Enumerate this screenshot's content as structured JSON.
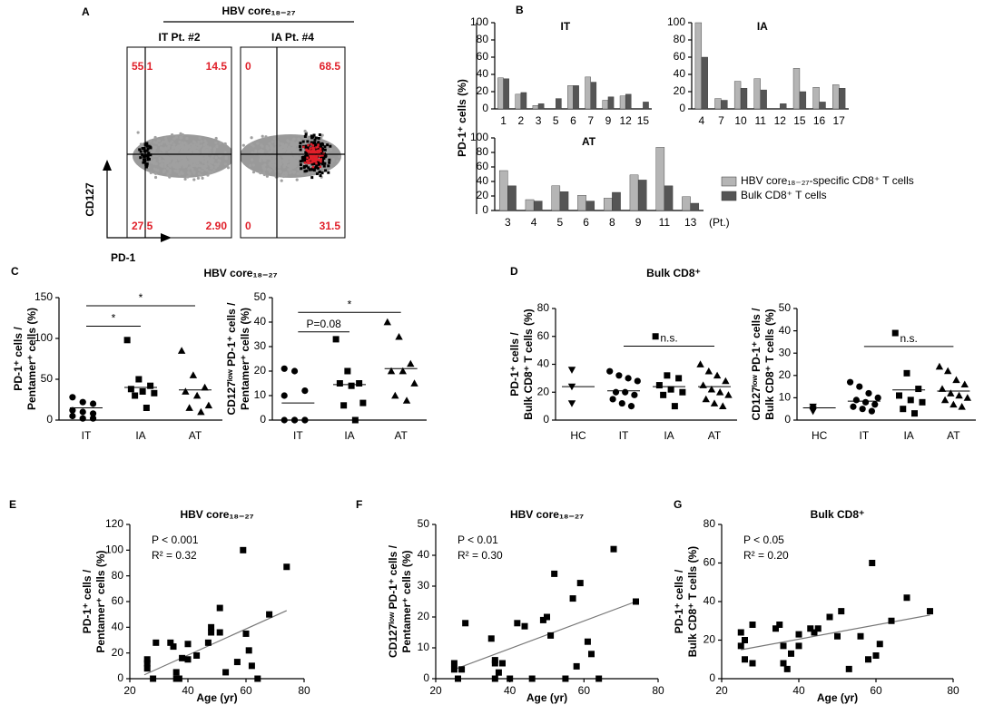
{
  "chart_data": [
    {
      "type": "flow",
      "panel": "A",
      "title": "HBV core₁₈₋₂₇",
      "xlabel": "PD-1",
      "ylabel": "CD127",
      "plots": [
        {
          "title": "IT Pt. #2",
          "values": [
            55.1,
            14.5,
            27.5,
            2.9
          ],
          "value_labels": [
            "55.1",
            "14.5",
            "27.5",
            "2.90"
          ]
        },
        {
          "title": "IA Pt. #4",
          "values": [
            0,
            68.5,
            0,
            31.5
          ]
        }
      ]
    },
    {
      "type": "bar",
      "panel": "B",
      "ylabel": "PD-1⁺ cells (%)",
      "ylim": [
        0,
        100
      ],
      "yticks": [
        0,
        20,
        40,
        60,
        80,
        100
      ],
      "x_unit": "(Pt.)",
      "series": [
        {
          "name": "HBV core₁₈₋₂₇-specific CD8⁺ T cells",
          "color": "#b5b5b5"
        },
        {
          "name": "Bulk CD8⁺ T cells",
          "color": "#555555"
        }
      ],
      "groups": [
        {
          "title": "IT",
          "categories": [
            "1",
            "2",
            "3",
            "5",
            "6",
            "7",
            "9",
            "12",
            "15"
          ],
          "series_values": [
            [
              36,
              17,
              4,
              0,
              27,
              37,
              10,
              15,
              0
            ],
            [
              35,
              19,
              6,
              12,
              27,
              31,
              14,
              17,
              8
            ]
          ]
        },
        {
          "title": "IA",
          "categories": [
            "4",
            "7",
            "10",
            "11",
            "12",
            "15",
            "16",
            "17"
          ],
          "series_values": [
            [
              100,
              12,
              32,
              35,
              0,
              47,
              25,
              28
            ],
            [
              60,
              10,
              24,
              22,
              6,
              20,
              8,
              24
            ]
          ]
        },
        {
          "title": "AT",
          "categories": [
            "3",
            "4",
            "5",
            "6",
            "8",
            "9",
            "11",
            "13"
          ],
          "series_values": [
            [
              55,
              15,
              34,
              21,
              17,
              49,
              87,
              19
            ],
            [
              34,
              13,
              26,
              13,
              25,
              42,
              34,
              10
            ]
          ]
        }
      ]
    },
    {
      "type": "dot",
      "panel": "C",
      "title": "HBV core₁₈₋₂₇",
      "markers": [
        "circle",
        "square",
        "triangle"
      ],
      "plots": [
        {
          "ylabel": [
            "PD-1⁺ cells /",
            "Pentamer⁺ cells (%)"
          ],
          "ylim": [
            0,
            150
          ],
          "yticks": [
            0,
            50,
            100,
            150
          ],
          "categories": [
            "IT",
            "IA",
            "AT"
          ],
          "annotations": [
            "*",
            "*"
          ],
          "groups": [
            {
              "values": [
                28,
                22,
                20,
                12,
                10,
                8,
                5,
                2,
                2
              ],
              "mean": 15
            },
            {
              "values": [
                98,
                50,
                42,
                38,
                35,
                33,
                30,
                15
              ],
              "mean": 40
            },
            {
              "values": [
                85,
                55,
                40,
                35,
                30,
                18,
                15,
                10
              ],
              "mean": 37
            }
          ]
        },
        {
          "ylabel": [
            "CD127ˡᵒʷ PD-1⁺ cells /",
            "Pentamer⁺ cells (%)"
          ],
          "ylim": [
            0,
            50
          ],
          "yticks": [
            0,
            10,
            20,
            30,
            40,
            50
          ],
          "categories": [
            "IT",
            "IA",
            "AT"
          ],
          "annotations": [
            "P=0.08",
            "*"
          ],
          "groups": [
            {
              "values": [
                21,
                20,
                12,
                10,
                0,
                0,
                0,
                0,
                0
              ],
              "mean": 7
            },
            {
              "values": [
                33,
                20,
                15,
                15,
                14,
                7,
                6,
                0
              ],
              "mean": 14.5
            },
            {
              "values": [
                40,
                34,
                23,
                20,
                20,
                15,
                10,
                8
              ],
              "mean": 21
            }
          ]
        }
      ]
    },
    {
      "type": "dot",
      "panel": "D",
      "title": "Bulk CD8⁺",
      "markers": [
        "triangle-down",
        "circle",
        "square",
        "triangle"
      ],
      "plots": [
        {
          "ylabel": [
            "PD-1⁺ cells /",
            "Bulk CD8⁺ T cells (%)"
          ],
          "ylim": [
            0,
            80
          ],
          "yticks": [
            0,
            20,
            40,
            60,
            80
          ],
          "categories": [
            "HC",
            "IT",
            "IA",
            "AT"
          ],
          "annotations": [
            "n.s."
          ],
          "groups": [
            {
              "values": [
                36,
                24,
                12
              ],
              "mean": 24
            },
            {
              "values": [
                35,
                32,
                30,
                28,
                20,
                20,
                18,
                15,
                12,
                10
              ],
              "mean": 21
            },
            {
              "values": [
                60,
                32,
                30,
                25,
                22,
                20,
                18,
                10
              ],
              "mean": 24
            },
            {
              "values": [
                40,
                35,
                32,
                28,
                25,
                22,
                20,
                18,
                15,
                12,
                10
              ],
              "mean": 24
            }
          ]
        },
        {
          "ylabel": [
            "CD127ˡᵒʷ PD-1⁺ cells /",
            "Bulk CD8⁺ T cells (%)"
          ],
          "ylim": [
            0,
            50
          ],
          "yticks": [
            0,
            10,
            20,
            30,
            40,
            50
          ],
          "categories": [
            "HC",
            "IT",
            "IA",
            "AT"
          ],
          "annotations": [
            "n.s."
          ],
          "groups": [
            {
              "values": [
                6,
                5,
                4
              ],
              "mean": 5.5
            },
            {
              "values": [
                17,
                15,
                12,
                10,
                9,
                8,
                7,
                6,
                5,
                4
              ],
              "mean": 8.5
            },
            {
              "values": [
                39,
                21,
                14,
                11,
                9,
                8,
                5,
                3
              ],
              "mean": 13.5
            },
            {
              "values": [
                24,
                22,
                18,
                16,
                14,
                12,
                11,
                10,
                9,
                7,
                6
              ],
              "mean": 13
            }
          ]
        }
      ]
    },
    {
      "type": "scatter",
      "panel": "E",
      "title": "HBV core₁₈₋₂₇",
      "xlabel": "Age (yr)",
      "ylabel": [
        "PD-1⁺ cells /",
        "Pentamer⁺ cells (%)"
      ],
      "annotations": [
        "P < 0.001",
        "R² = 0.32"
      ],
      "xlim": [
        20,
        80
      ],
      "xticks": [
        20,
        40,
        60,
        80
      ],
      "ylim": [
        0,
        120
      ],
      "yticks": [
        0,
        20,
        40,
        60,
        80,
        100,
        120
      ],
      "x": [
        26,
        26,
        26,
        28,
        29,
        34,
        35,
        36,
        36,
        37,
        38,
        40,
        40,
        43,
        47,
        48,
        48,
        51,
        51,
        53,
        57,
        59,
        60,
        61,
        62,
        64,
        68,
        74
      ],
      "y": [
        8,
        12,
        15,
        0,
        28,
        28,
        25,
        5,
        0,
        0,
        16,
        15,
        27,
        18,
        28,
        36,
        40,
        36,
        55,
        5,
        13,
        100,
        35,
        22,
        10,
        0,
        50,
        87
      ],
      "fit": {
        "x": [
          25,
          74
        ],
        "y": [
          3,
          53
        ]
      }
    },
    {
      "type": "scatter",
      "panel": "F",
      "title": "HBV core₁₈₋₂₇",
      "xlabel": "Age (yr)",
      "ylabel": [
        "CD127ˡᵒʷ PD-1⁺ cells /",
        "Pentamer⁺ cells (%)"
      ],
      "annotations": [
        "P < 0.01",
        "R² = 0.30"
      ],
      "xlim": [
        20,
        80
      ],
      "xticks": [
        20,
        40,
        60,
        80
      ],
      "ylim": [
        0,
        50
      ],
      "yticks": [
        0,
        10,
        20,
        30,
        40,
        50
      ],
      "x": [
        25,
        25,
        26,
        27,
        28,
        35,
        36,
        36,
        36,
        37,
        38,
        40,
        42,
        44,
        46,
        49,
        50,
        51,
        52,
        55,
        57,
        58,
        59,
        61,
        62,
        64,
        68,
        74
      ],
      "y": [
        5,
        3,
        0,
        3,
        18,
        13,
        6,
        5,
        0,
        2,
        5,
        0,
        18,
        17,
        0,
        19,
        20,
        14,
        34,
        0,
        26,
        4,
        31,
        12,
        8,
        0,
        42,
        25
      ],
      "fit": {
        "x": [
          25,
          74
        ],
        "y": [
          3,
          25
        ]
      }
    },
    {
      "type": "scatter",
      "panel": "G",
      "title": "Bulk CD8⁺",
      "xlabel": "Age (yr)",
      "ylabel": [
        "PD-1⁺ cells /",
        "Bulk CD8⁺ T cells (%)"
      ],
      "annotations": [
        "P < 0.05",
        "R² = 0.20"
      ],
      "xlim": [
        20,
        80
      ],
      "xticks": [
        20,
        40,
        60,
        80
      ],
      "ylim": [
        0,
        80
      ],
      "yticks": [
        0,
        20,
        40,
        60,
        80
      ],
      "x": [
        25,
        25,
        26,
        26,
        28,
        28,
        34,
        35,
        36,
        36,
        37,
        38,
        40,
        40,
        43,
        44,
        45,
        48,
        50,
        51,
        53,
        56,
        58,
        59,
        60,
        61,
        64,
        68,
        74
      ],
      "y": [
        24,
        17,
        10,
        20,
        8,
        28,
        26,
        28,
        8,
        17,
        5,
        13,
        17,
        23,
        26,
        24,
        26,
        32,
        22,
        35,
        5,
        22,
        10,
        60,
        12,
        18,
        30,
        42,
        35
      ],
      "fit": {
        "x": [
          25,
          74
        ],
        "y": [
          15,
          33
        ]
      }
    }
  ]
}
